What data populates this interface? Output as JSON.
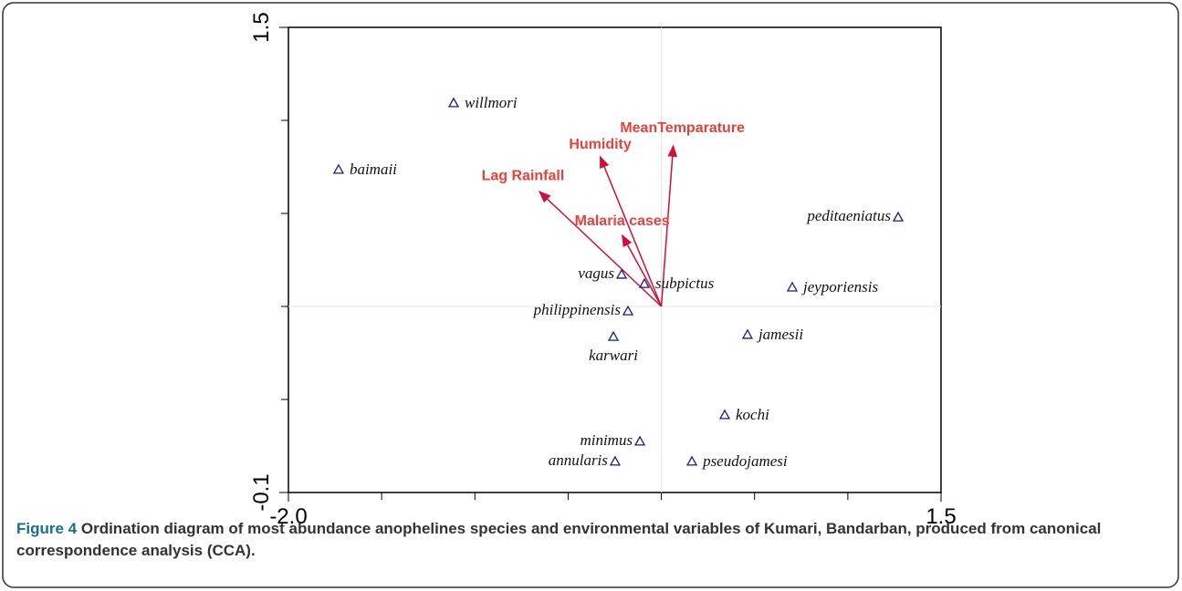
{
  "chart_data": {
    "type": "scatter",
    "xlim": [
      -2.0,
      1.5
    ],
    "ylim": [
      -0.1,
      1.5
    ],
    "xticks": [
      {
        "value": -2.0,
        "label": "-2.0"
      },
      1.5
    ],
    "xminorticks": [
      -1.5,
      -1.0,
      -0.5,
      0,
      0.5,
      1.0
    ],
    "yticks": [
      {
        "value": -0.1,
        "label": "-0.1"
      },
      1.5
    ],
    "yminorticks": [
      0.22,
      0.54,
      0.86,
      1.18
    ],
    "origin": {
      "x": 0,
      "y": 0.54
    },
    "marker_color": "#1a1a8c",
    "arrow_color": "#d0103a",
    "points": [
      {
        "name": "willmori",
        "x": -1.114,
        "y": 1.24
      },
      {
        "name": "baimaii",
        "x": -1.731,
        "y": 1.011
      },
      {
        "name": "peditaeniatus",
        "x": 1.27,
        "y": 0.847
      },
      {
        "name": "vagus",
        "x": -0.213,
        "y": 0.65
      },
      {
        "name": "subpictus",
        "x": -0.091,
        "y": 0.618
      },
      {
        "name": "jeyporiensis",
        "x": 0.702,
        "y": 0.606
      },
      {
        "name": "philippinensis",
        "x": -0.179,
        "y": 0.524
      },
      {
        "name": "karwari",
        "x": -0.257,
        "y": 0.436
      },
      {
        "name": "jamesii",
        "x": 0.462,
        "y": 0.443
      },
      {
        "name": "kochi",
        "x": 0.34,
        "y": 0.167
      },
      {
        "name": "minimus",
        "x": -0.115,
        "y": 0.076
      },
      {
        "name": "annularis",
        "x": -0.248,
        "y": 0.007
      },
      {
        "name": "pseudojamesi",
        "x": 0.164,
        "y": 0.007
      }
    ],
    "arrows": [
      {
        "name": "MeanTemparature",
        "x": 0.064,
        "y": 1.093
      },
      {
        "name": "Humidity",
        "x": -0.328,
        "y": 1.055
      },
      {
        "name": "Lag Rainfall",
        "x": -0.654,
        "y": 0.935
      },
      {
        "name": "Malaria cases",
        "x": -0.21,
        "y": 0.785
      }
    ]
  },
  "caption": {
    "label": "Figure 4",
    "text": "Ordination diagram of most abundance anophelines species and environmental variables of Kumari, Bandarban, produced from canonical correspondence analysis (CCA)."
  }
}
